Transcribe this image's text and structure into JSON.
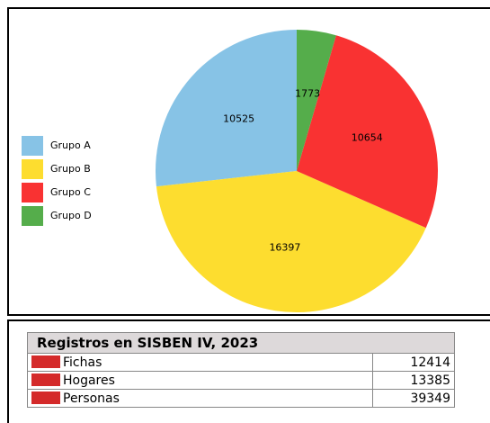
{
  "chart_data": {
    "type": "pie",
    "categories": [
      "Grupo A",
      "Grupo B",
      "Grupo C",
      "Grupo D"
    ],
    "values": [
      10525,
      16397,
      10654,
      1773
    ],
    "colors": [
      "#87c3e6",
      "#fddd2f",
      "#f93232",
      "#55ad4b"
    ],
    "legend": "left"
  },
  "table": {
    "title": "Registros en SISBEN IV, 2023",
    "rows": [
      [
        "Fichas",
        "12414"
      ],
      [
        "Hogares",
        "13385"
      ],
      [
        "Personas",
        "39349"
      ]
    ]
  }
}
